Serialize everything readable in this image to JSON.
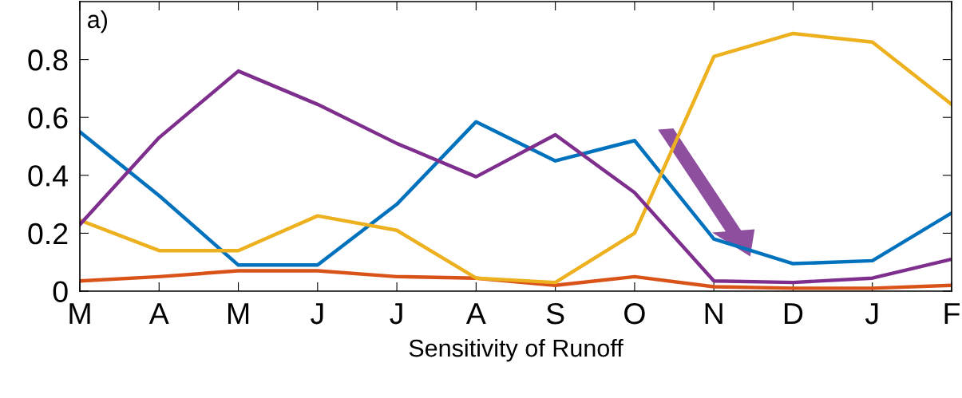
{
  "chart_data": {
    "type": "line",
    "categories": [
      "M",
      "A",
      "M",
      "J",
      "J",
      "A",
      "S",
      "O",
      "N",
      "D",
      "J",
      "F"
    ],
    "series": [
      {
        "color": "#0072bd",
        "values": [
          0.55,
          0.33,
          0.09,
          0.09,
          0.3,
          0.585,
          0.45,
          0.52,
          0.18,
          0.095,
          0.105,
          0.27
        ]
      },
      {
        "color": "#d95319",
        "values": [
          0.035,
          0.05,
          0.07,
          0.07,
          0.05,
          0.045,
          0.02,
          0.05,
          0.015,
          0.01,
          0.01,
          0.02
        ]
      },
      {
        "color": "#edb120",
        "values": [
          0.245,
          0.14,
          0.14,
          0.26,
          0.21,
          0.045,
          0.03,
          0.2,
          0.81,
          0.89,
          0.86,
          0.645
        ]
      },
      {
        "color": "#7e2f8e",
        "values": [
          0.23,
          0.53,
          0.76,
          0.645,
          0.51,
          0.395,
          0.54,
          0.34,
          0.035,
          0.03,
          0.045,
          0.11
        ]
      }
    ],
    "ylim": [
      0,
      1.0
    ],
    "yticks": [
      0,
      0.2,
      0.4,
      0.6,
      0.8
    ],
    "xlabel": "Sensitivity of Runoff",
    "annotations": [
      "a)"
    ],
    "grid": false,
    "marker": "none",
    "line_style": "solid"
  }
}
